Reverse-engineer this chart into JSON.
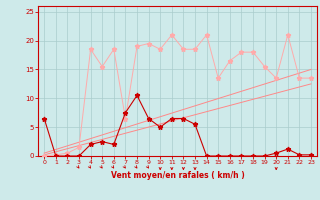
{
  "xlabel": "Vent moyen/en rafales ( km/h )",
  "background_color": "#ceeaea",
  "grid_color": "#aacccc",
  "text_color": "#cc0000",
  "x_values": [
    0,
    1,
    2,
    3,
    4,
    5,
    6,
    7,
    8,
    9,
    10,
    11,
    12,
    13,
    14,
    15,
    16,
    17,
    18,
    19,
    20,
    21,
    22,
    23
  ],
  "line_dark_y": [
    6.5,
    0.0,
    0.0,
    0.0,
    2.0,
    2.5,
    2.0,
    7.5,
    10.5,
    6.5,
    5.0,
    6.5,
    6.5,
    5.5,
    0.0,
    0.0,
    0.0,
    0.0,
    0.0,
    0.0,
    0.5,
    1.2,
    0.2,
    0.2
  ],
  "line_mid_y": [
    0.0,
    0.2,
    0.5,
    1.5,
    18.5,
    15.5,
    18.5,
    6.5,
    19.0,
    19.5,
    18.5,
    21.0,
    18.5,
    18.5,
    21.0,
    13.5,
    16.5,
    18.0,
    18.0,
    15.5,
    13.5,
    21.0,
    13.5,
    13.5
  ],
  "trend1_start": 0.2,
  "trend1_end": 12.5,
  "trend2_start": 0.5,
  "trend2_end": 15.0,
  "ylim": [
    0,
    26
  ],
  "xlim": [
    -0.5,
    23.5
  ],
  "yticks": [
    0,
    5,
    10,
    15,
    20,
    25
  ],
  "xticks": [
    0,
    1,
    2,
    3,
    4,
    5,
    6,
    7,
    8,
    9,
    10,
    11,
    12,
    13,
    14,
    15,
    16,
    17,
    18,
    19,
    20,
    21,
    22,
    23
  ],
  "line_dark_color": "#cc0000",
  "line_mid_color": "#ffaaaa",
  "trend_color": "#ff8888",
  "wind_se_arrows": [
    3,
    4,
    5,
    6,
    7,
    8,
    9
  ],
  "wind_s_arrows": [
    10,
    11,
    12,
    13,
    20
  ]
}
